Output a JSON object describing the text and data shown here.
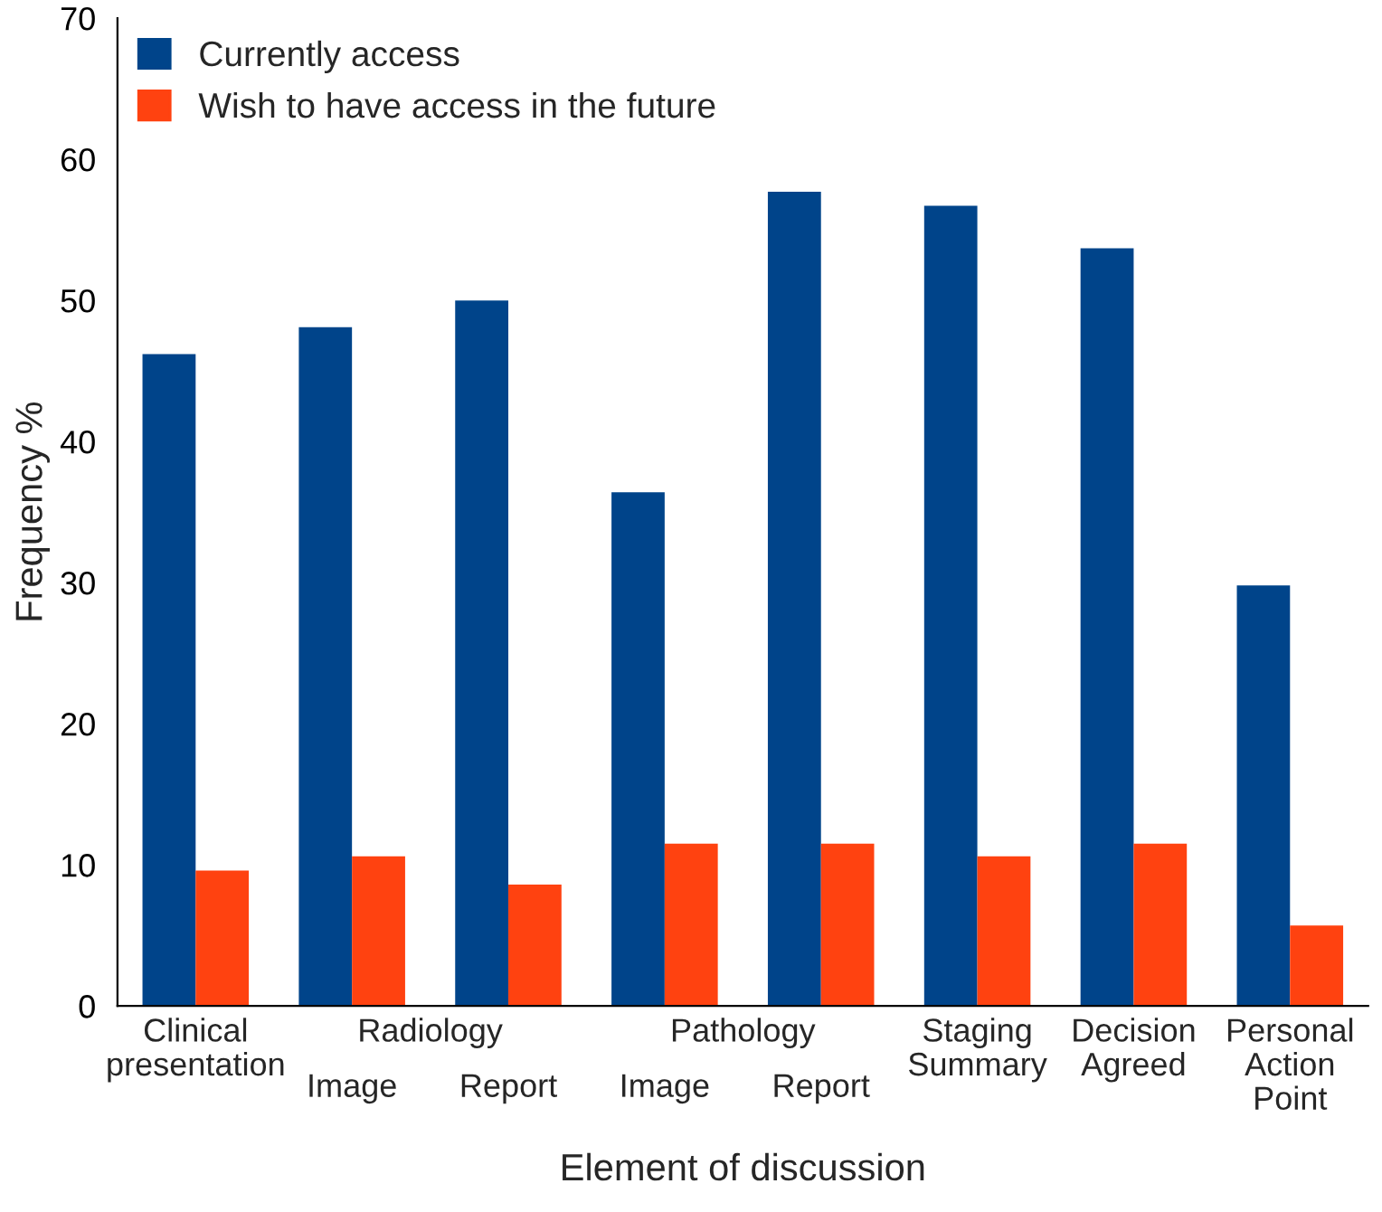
{
  "chart_data": {
    "type": "bar",
    "xlabel": "Element of discussion",
    "ylabel": "Frequency %",
    "categories": [
      "Clinical\npresentation",
      "Image",
      "Report",
      "Image",
      "Report",
      "Staging\nSummary",
      "Decision\nAgreed",
      "Personal\nAction\nPoint"
    ],
    "series": [
      {
        "name": "Currently access",
        "color": "#00448a",
        "values": [
          46.2,
          48.1,
          50,
          36.4,
          57.7,
          56.7,
          53.7,
          29.8
        ]
      },
      {
        "name": "Wish to have access in the future",
        "color": "#ff4210",
        "values": [
          9.6,
          10.6,
          8.6,
          11.5,
          11.5,
          10.6,
          11.5,
          5.7
        ]
      }
    ],
    "annotations": [
      "Radiology",
      "Pathology"
    ],
    "ylim": [
      0,
      70
    ],
    "yticks": [
      0,
      10,
      20,
      30,
      40,
      50,
      60,
      70
    ],
    "grid": false,
    "legend": "top left"
  }
}
